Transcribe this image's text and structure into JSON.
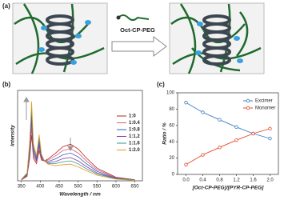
{
  "panel_labels": [
    "(a)",
    "(b)",
    "(c)"
  ],
  "illustration": {
    "reagent": "Oct-CP-PEG"
  },
  "chart_data": [
    {
      "type": "line",
      "xlabel": "Wavelength / nm",
      "ylabel": "Intensity",
      "x": [
        350,
        365,
        372,
        377,
        382,
        390,
        397,
        403,
        410,
        420,
        440,
        460,
        480,
        500,
        520,
        550,
        600,
        650
      ],
      "xlim": [
        340,
        670
      ],
      "xticks": [
        350,
        400,
        450,
        500,
        550,
        600,
        650
      ],
      "ylim": [
        0,
        400
      ],
      "legend": "upper right",
      "markers": false,
      "series": [
        {
          "name": "1:0",
          "color": "#b22a2a",
          "values": [
            4,
            20,
            100,
            203,
            98,
            76,
            134,
            92,
            88,
            96,
            122,
            151,
            162,
            141,
            104,
            56,
            16,
            5
          ]
        },
        {
          "name": "1:0.4",
          "color": "#e05a6a",
          "values": [
            5,
            23,
            115,
            233,
            111,
            83,
            148,
            97,
            88,
            91,
            110,
            134,
            142,
            123,
            91,
            49,
            14,
            4
          ]
        },
        {
          "name": "1:0.8",
          "color": "#3060c0",
          "values": [
            5,
            26,
            130,
            262,
            123,
            90,
            161,
            102,
            88,
            85,
            97,
            115,
            123,
            106,
            78,
            42,
            12,
            4
          ]
        },
        {
          "name": "1:1.2",
          "color": "#8a3aa0",
          "values": [
            6,
            29,
            145,
            292,
            136,
            97,
            175,
            107,
            88,
            80,
            85,
            98,
            103,
            88,
            65,
            35,
            10,
            3
          ]
        },
        {
          "name": "1:1.6",
          "color": "#2a9a8a",
          "values": [
            6,
            32,
            160,
            322,
            148,
            105,
            189,
            113,
            90,
            76,
            76,
            84,
            88,
            75,
            55,
            30,
            9,
            3
          ]
        },
        {
          "name": "1:2.0",
          "color": "#e89a20",
          "values": [
            7,
            35,
            175,
            351,
            162,
            112,
            204,
            119,
            91,
            74,
            67,
            71,
            74,
            62,
            46,
            25,
            7,
            2
          ]
        }
      ]
    },
    {
      "type": "line",
      "xlabel": "[Oct-CP-PEG]/[PYR-CP-PEG]",
      "ylabel": "Ratio / %",
      "x": [
        0.0,
        0.4,
        0.8,
        1.2,
        1.6,
        2.0
      ],
      "xlim": [
        -0.2,
        2.2
      ],
      "xticks": [
        {
          "value": 0,
          "label": "0.0"
        },
        0.4,
        0.8,
        1.2,
        1.6,
        {
          "value": 2,
          "label": "2.0"
        }
      ],
      "ylim": [
        0,
        100
      ],
      "yticks": [
        0,
        20,
        40,
        60,
        80,
        100
      ],
      "legend": "upper right",
      "markers": true,
      "series": [
        {
          "name": "Excimer",
          "color": "#3a7fc1",
          "values": [
            88,
            76,
            67,
            58,
            50,
            44
          ]
        },
        {
          "name": "Monomer",
          "color": "#e8472b",
          "values": [
            12,
            24,
            33,
            42,
            50,
            56
          ]
        }
      ]
    }
  ]
}
